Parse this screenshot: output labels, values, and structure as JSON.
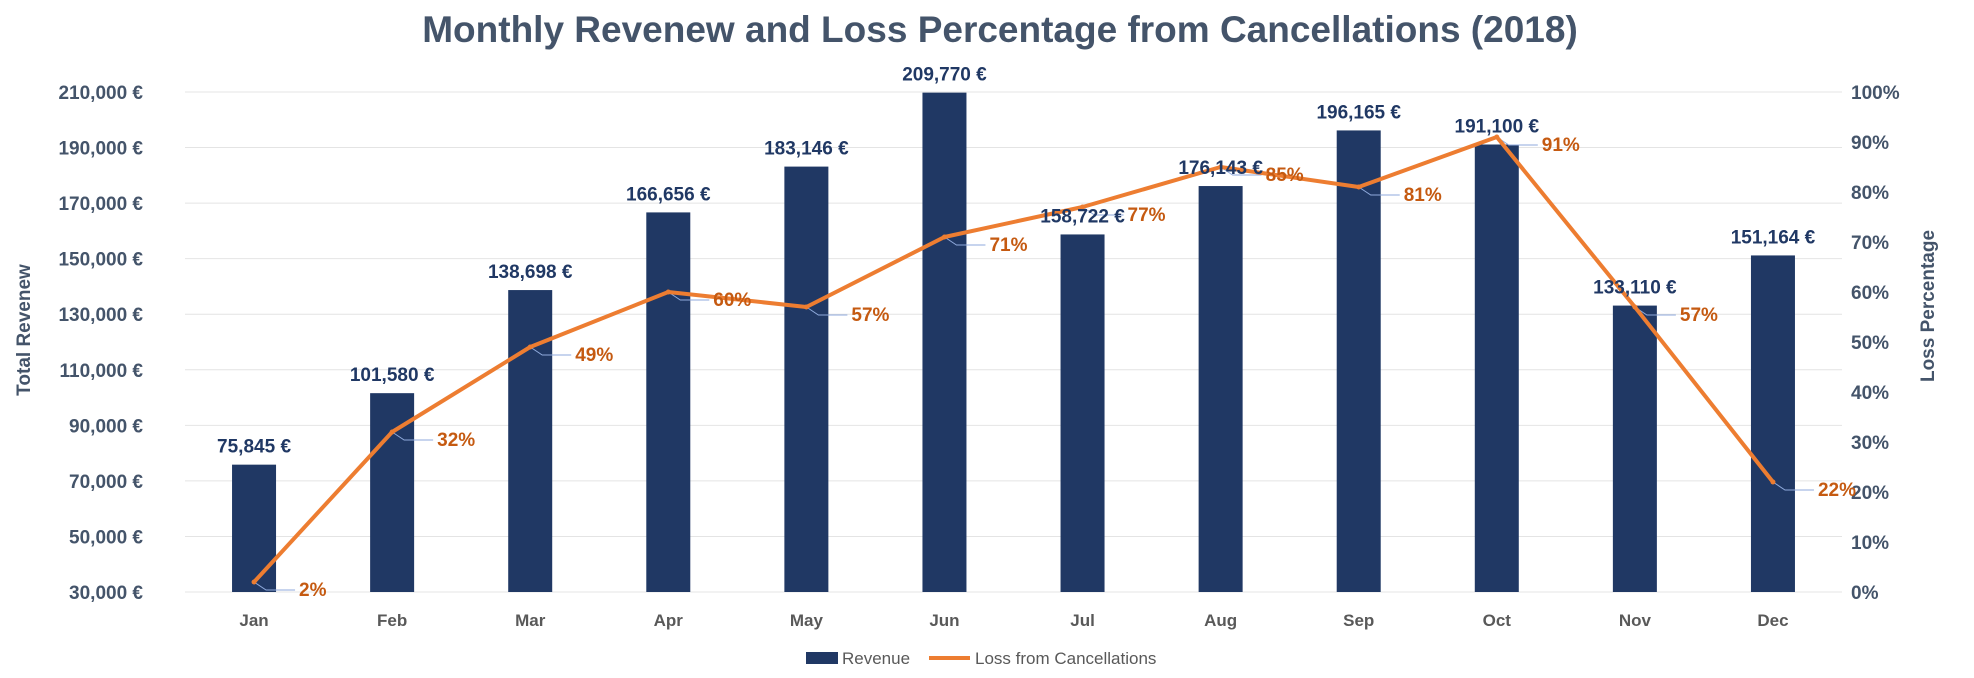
{
  "chart_data": {
    "type": "bar",
    "title": "Monthly Revenew and Loss Percentage from Cancellations (2018)",
    "categories": [
      "Jan",
      "Feb",
      "Mar",
      "Apr",
      "May",
      "Jun",
      "Jul",
      "Aug",
      "Sep",
      "Oct",
      "Nov",
      "Dec"
    ],
    "series": [
      {
        "name": "Revenue",
        "type": "bar",
        "axis": "left",
        "values": [
          75845,
          101580,
          138698,
          166656,
          183146,
          209770,
          158722,
          176143,
          196165,
          191100,
          133110,
          151164
        ],
        "labels": [
          "75,845 €",
          "101,580 €",
          "138,698 €",
          "166,656 €",
          "183,146 €",
          "209,770 €",
          "158,722 €",
          "176,143 €",
          "196,165 €",
          "191,100 €",
          "133,110 €",
          "151,164 €"
        ]
      },
      {
        "name": "Loss from Cancellations",
        "type": "line",
        "axis": "right",
        "values": [
          2,
          32,
          49,
          60,
          57,
          71,
          77,
          85,
          81,
          91,
          57,
          22
        ],
        "labels": [
          "2%",
          "32%",
          "49%",
          "60%",
          "57%",
          "71%",
          "77%",
          "85%",
          "81%",
          "91%",
          "57%",
          "22%"
        ]
      }
    ],
    "ylabel": "Total Revenew",
    "ylabel_right": "Loss Percentage",
    "ylim": [
      30000,
      210000
    ],
    "ylim_right": [
      0,
      100
    ],
    "yticks": [
      "30,000 €",
      "50,000 €",
      "70,000 €",
      "90,000 €",
      "110,000 €",
      "130,000 €",
      "150,000 €",
      "170,000 €",
      "190,000 €",
      "210,000 €"
    ],
    "yticks_right": [
      "0%",
      "10%",
      "20%",
      "30%",
      "40%",
      "50%",
      "60%",
      "70%",
      "80%",
      "90%",
      "100%"
    ],
    "legend": [
      "Revenue",
      "Loss from Cancellations"
    ],
    "legend_position": "bottom",
    "grid": true,
    "colors": {
      "bar": "#203864",
      "line": "#ed7d31",
      "line_label": "#c55a11",
      "bar_label": "#203864"
    }
  }
}
